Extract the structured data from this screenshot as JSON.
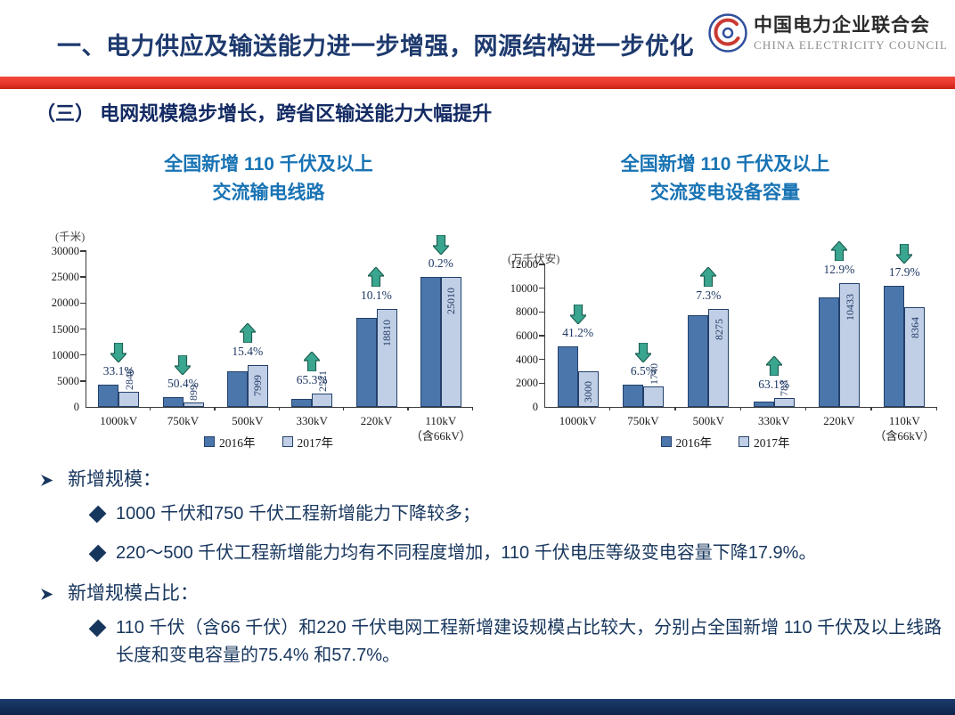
{
  "header": {
    "title": "一、电力供应及输送能力进一步增强，网源结构进一步优化",
    "logo_cn": "中国电力企业联合会",
    "logo_en": "CHINA ELECTRICITY COUNCIL"
  },
  "section_title": "（三） 电网规模稳步增长，跨省区输送能力大幅提升",
  "chart_data": [
    {
      "type": "bar",
      "title": "全国新增 110 千伏及以上交流输电线路",
      "title_lines": [
        "全国新增 110 千伏及以上",
        "交流输电线路"
      ],
      "unit": "(千米)",
      "categories": [
        "1000kV",
        "750kV",
        "500kV",
        "330kV",
        "220kV",
        "110kV\n（含66kV）"
      ],
      "series": [
        {
          "name": "2016年",
          "values": [
            4254,
            1813,
            6932,
            1525,
            17086,
            25060
          ]
        },
        {
          "name": "2017年",
          "values": [
            2846,
            899,
            7999,
            2521,
            18810,
            25010
          ]
        }
      ],
      "value_labels": [
        "2846",
        "899",
        "7999",
        "2521",
        "18810",
        "25010"
      ],
      "changes": [
        {
          "dir": "down",
          "pct": "33.1%"
        },
        {
          "dir": "down",
          "pct": "50.4%"
        },
        {
          "dir": "up",
          "pct": "15.4%"
        },
        {
          "dir": "up",
          "pct": "65.3%"
        },
        {
          "dir": "up",
          "pct": "10.1%"
        },
        {
          "dir": "down",
          "pct": "0.2%"
        }
      ],
      "ylim": [
        0,
        30000
      ],
      "yticks": [
        0,
        5000,
        10000,
        15000,
        20000,
        25000,
        30000
      ],
      "grid": false,
      "legend_position": "bottom"
    },
    {
      "type": "bar",
      "title": "全国新增 110 千伏及以上交流变电设备容量",
      "title_lines": [
        "全国新增 110 千伏及以上",
        "交流变电设备容量"
      ],
      "unit": "(万千伏安)",
      "categories": [
        "1000kV",
        "750kV",
        "500kV",
        "330kV",
        "220kV",
        "110kV\n（含66kV）"
      ],
      "series": [
        {
          "name": "2016年",
          "values": [
            5102,
            1861,
            7712,
            480,
            9241,
            10188
          ]
        },
        {
          "name": "2017年",
          "values": [
            3000,
            1740,
            8275,
            783,
            10433,
            8364
          ]
        }
      ],
      "value_labels": [
        "3000",
        "1740",
        "8275",
        "783",
        "10433",
        "8364"
      ],
      "changes": [
        {
          "dir": "down",
          "pct": "41.2%"
        },
        {
          "dir": "down",
          "pct": "6.5%"
        },
        {
          "dir": "up",
          "pct": "7.3%"
        },
        {
          "dir": "up",
          "pct": "63.1%"
        },
        {
          "dir": "up",
          "pct": "12.9%"
        },
        {
          "dir": "down",
          "pct": "17.9%"
        }
      ],
      "ylim": [
        0,
        12000
      ],
      "yticks": [
        0,
        2000,
        4000,
        6000,
        8000,
        10000,
        12000
      ],
      "grid": false,
      "legend_position": "bottom"
    }
  ],
  "bullets": [
    {
      "label": "新增规模：",
      "items": [
        "1000 千伏和750 千伏工程新增能力下降较多；",
        "220～500 千伏工程新增能力均有不同程度增加，110 千伏电压等级变电容量下降17.9%。"
      ]
    },
    {
      "label": "新增规模占比：",
      "items": [
        "110 千伏（含66 千伏）和220 千伏电网工程新增建设规模占比较大，分别占全国新增 110 千伏及以上线路长度和变电容量的75.4% 和57.7%。"
      ]
    }
  ],
  "colors": {
    "navy_text": "#17365d",
    "chart_title_blue": "#1873b4",
    "bar_2016": "#4a76ab",
    "bar_2017": "#c0cfe5",
    "bar_border": "#24416b",
    "arrow_fill": "#3aa690",
    "arrow_stroke": "#1e6153",
    "divider_red": "#e8352a",
    "footer_navy": "#132b56"
  }
}
